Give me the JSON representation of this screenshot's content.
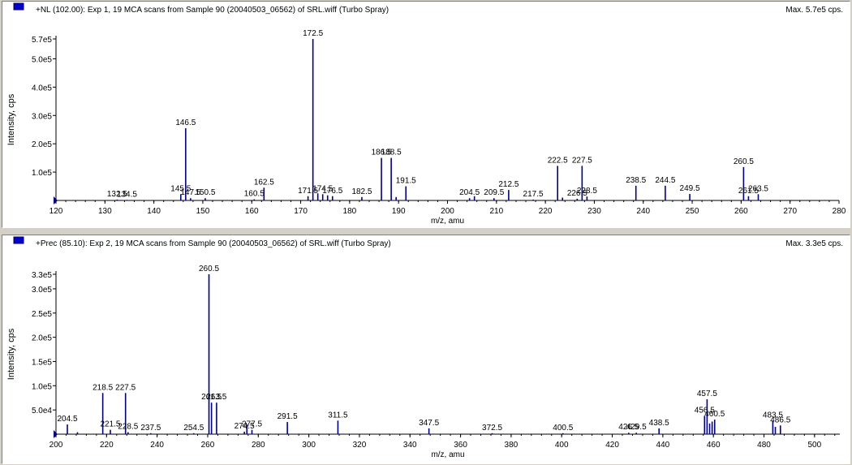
{
  "colors": {
    "trace": "#00008b",
    "marker": "#0000c8",
    "axis": "#000000",
    "background": "#ffffff"
  },
  "chart_data": [
    {
      "type": "bar",
      "title": "+NL (102.00): Exp 1, 19 MCA scans from Sample 90 (20040503_06562) of SRL.wiff (Turbo Spray)",
      "max_label": "Max. 5.7e5 cps.",
      "xlabel": "m/z, amu",
      "ylabel": "Intensity, cps",
      "xlim": [
        120,
        280
      ],
      "ylim": [
        0,
        570000
      ],
      "x_ticks": [
        120,
        130,
        140,
        150,
        160,
        170,
        180,
        190,
        200,
        210,
        220,
        230,
        240,
        250,
        260,
        270,
        280
      ],
      "y_ticks": [
        {
          "value": 100000,
          "label": "1.0e5"
        },
        {
          "value": 200000,
          "label": "2.0e5"
        },
        {
          "value": 300000,
          "label": "3.0e5"
        },
        {
          "value": 400000,
          "label": "4.0e5"
        },
        {
          "value": 500000,
          "label": "5.0e5"
        },
        {
          "value": 570000,
          "label": "5.7e5"
        }
      ],
      "peaks": [
        {
          "mz": 132.5,
          "y": 3000,
          "label": "132.5"
        },
        {
          "mz": 134.5,
          "y": 2000,
          "label": "134.5"
        },
        {
          "mz": 145.5,
          "y": 22000,
          "label": "145.5"
        },
        {
          "mz": 146.5,
          "y": 255000,
          "label": "146.5"
        },
        {
          "mz": 147.5,
          "y": 8000,
          "label": "147.5"
        },
        {
          "mz": 150.5,
          "y": 8000,
          "label": "150.5"
        },
        {
          "mz": 160.5,
          "y": 4000,
          "label": "160.5"
        },
        {
          "mz": 162.5,
          "y": 45000,
          "label": "162.5"
        },
        {
          "mz": 171.5,
          "y": 15000,
          "label": "171.5"
        },
        {
          "mz": 172.5,
          "y": 570000,
          "label": "172.5"
        },
        {
          "mz": 173.5,
          "y": 25000,
          "label": ""
        },
        {
          "mz": 174.5,
          "y": 22000,
          "label": "174.5"
        },
        {
          "mz": 175.5,
          "y": 18000,
          "label": ""
        },
        {
          "mz": 176.5,
          "y": 15000,
          "label": "176.5"
        },
        {
          "mz": 182.5,
          "y": 12000,
          "label": "182.5"
        },
        {
          "mz": 186.5,
          "y": 150000,
          "label": "186.5"
        },
        {
          "mz": 188.5,
          "y": 150000,
          "label": "188.5"
        },
        {
          "mz": 189.5,
          "y": 12000,
          "label": ""
        },
        {
          "mz": 191.5,
          "y": 50000,
          "label": "191.5"
        },
        {
          "mz": 204.5,
          "y": 8000,
          "label": "204.5"
        },
        {
          "mz": 205.5,
          "y": 15000,
          "label": ""
        },
        {
          "mz": 209.5,
          "y": 8000,
          "label": "209.5"
        },
        {
          "mz": 212.5,
          "y": 37000,
          "label": "212.5"
        },
        {
          "mz": 217.5,
          "y": 3000,
          "label": "217.5"
        },
        {
          "mz": 222.5,
          "y": 122000,
          "label": "222.5"
        },
        {
          "mz": 223.5,
          "y": 10000,
          "label": ""
        },
        {
          "mz": 226.5,
          "y": 6000,
          "label": "226.5"
        },
        {
          "mz": 227.5,
          "y": 122000,
          "label": "227.5"
        },
        {
          "mz": 228.5,
          "y": 14000,
          "label": "228.5"
        },
        {
          "mz": 238.5,
          "y": 52000,
          "label": "238.5"
        },
        {
          "mz": 244.5,
          "y": 52000,
          "label": "244.5"
        },
        {
          "mz": 249.5,
          "y": 23000,
          "label": "249.5"
        },
        {
          "mz": 260.5,
          "y": 118000,
          "label": "260.5"
        },
        {
          "mz": 261.5,
          "y": 15000,
          "label": "261.5"
        },
        {
          "mz": 263.5,
          "y": 22000,
          "label": "263.5"
        }
      ]
    },
    {
      "type": "bar",
      "title": "+Prec (85.10): Exp 2, 19 MCA scans from Sample 90 (20040503_06562) of SRL.wiff (Turbo Spray)",
      "max_label": "Max. 3.3e5 cps.",
      "xlabel": "m/z, amu",
      "ylabel": "Intensity, cps",
      "xlim": [
        200,
        510
      ],
      "ylim": [
        0,
        330000
      ],
      "x_ticks": [
        200,
        220,
        240,
        260,
        280,
        300,
        320,
        340,
        360,
        380,
        400,
        420,
        440,
        460,
        480,
        500
      ],
      "y_ticks": [
        {
          "value": 50000,
          "label": "5.0e4"
        },
        {
          "value": 100000,
          "label": "1.0e5"
        },
        {
          "value": 150000,
          "label": "1.5e5"
        },
        {
          "value": 200000,
          "label": "2.0e5"
        },
        {
          "value": 250000,
          "label": "2.5e5"
        },
        {
          "value": 300000,
          "label": "3.0e5"
        },
        {
          "value": 330000,
          "label": "3.3e5"
        }
      ],
      "peaks": [
        {
          "mz": 204.5,
          "y": 20000,
          "label": "204.5"
        },
        {
          "mz": 208.5,
          "y": 4000,
          "label": ""
        },
        {
          "mz": 218.5,
          "y": 85000,
          "label": "218.5"
        },
        {
          "mz": 221.5,
          "y": 9000,
          "label": "221.5"
        },
        {
          "mz": 227.5,
          "y": 85000,
          "label": "227.5"
        },
        {
          "mz": 228.5,
          "y": 4000,
          "label": "228.5"
        },
        {
          "mz": 237.5,
          "y": 2000,
          "label": "237.5"
        },
        {
          "mz": 254.5,
          "y": 2000,
          "label": "254.5"
        },
        {
          "mz": 260.5,
          "y": 330000,
          "label": "260.5"
        },
        {
          "mz": 261.5,
          "y": 65000,
          "label": "261.5"
        },
        {
          "mz": 263.5,
          "y": 65000,
          "label": "263.5"
        },
        {
          "mz": 275.5,
          "y": 20000,
          "label": ""
        },
        {
          "mz": 277.5,
          "y": 9000,
          "label": "277.5"
        },
        {
          "mz": 274.5,
          "y": 5000,
          "label": "274.5"
        },
        {
          "mz": 291.5,
          "y": 25000,
          "label": "291.5"
        },
        {
          "mz": 311.5,
          "y": 28000,
          "label": "311.5"
        },
        {
          "mz": 347.5,
          "y": 12000,
          "label": "347.5"
        },
        {
          "mz": 372.5,
          "y": 2000,
          "label": "372.5"
        },
        {
          "mz": 400.5,
          "y": 2000,
          "label": "400.5"
        },
        {
          "mz": 426.5,
          "y": 3000,
          "label": "426.5"
        },
        {
          "mz": 429.5,
          "y": 3000,
          "label": "429.5"
        },
        {
          "mz": 438.5,
          "y": 12000,
          "label": "438.5"
        },
        {
          "mz": 456.5,
          "y": 38000,
          "label": "456.5"
        },
        {
          "mz": 457.5,
          "y": 72000,
          "label": "457.5"
        },
        {
          "mz": 458.5,
          "y": 22000,
          "label": ""
        },
        {
          "mz": 459.5,
          "y": 26000,
          "label": ""
        },
        {
          "mz": 460.5,
          "y": 30000,
          "label": "460.5"
        },
        {
          "mz": 483.5,
          "y": 28000,
          "label": "483.5"
        },
        {
          "mz": 484.5,
          "y": 15000,
          "label": ""
        },
        {
          "mz": 486.5,
          "y": 18000,
          "label": "486.5"
        }
      ]
    }
  ]
}
